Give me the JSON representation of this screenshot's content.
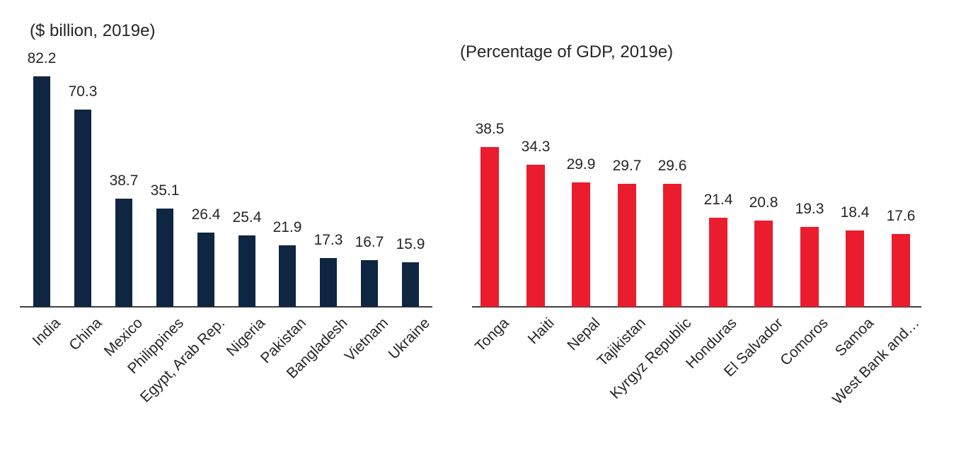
{
  "figure": {
    "description": "Two side-by-side bar charts of remittance inflows for 2019e"
  },
  "colors": {
    "left_bar": "#0e2642",
    "right_bar": "#eb1c2d",
    "axis": "#404040",
    "text": "#262626",
    "background": "#ffffff"
  },
  "chart_data": [
    {
      "type": "bar",
      "title": "($ billion, 2019e)",
      "categories": [
        "India",
        "China",
        "Mexico",
        "Philippines",
        "Egypt, Arab Rep.",
        "Nigeria",
        "Pakistan",
        "Bangladesh",
        "Vietnam",
        "Ukraine"
      ],
      "values": [
        82.2,
        70.3,
        38.7,
        35.1,
        26.4,
        25.4,
        21.9,
        17.3,
        16.7,
        15.9
      ],
      "bar_color": "#0e2642",
      "xlabel": "",
      "ylabel": "",
      "ylim": [
        0,
        90
      ],
      "grid": false,
      "legend_position": "none",
      "data_labels": true,
      "category_label_rotation_deg": -45
    },
    {
      "type": "bar",
      "title": "(Percentage of GDP, 2019e)",
      "categories": [
        "Tonga",
        "Haiti",
        "Nepal",
        "Tajikistan",
        "Kyrgyz Republic",
        "Honduras",
        "El Salvador",
        "Comoros",
        "Samoa",
        "West Bank and…"
      ],
      "values": [
        38.5,
        34.3,
        29.9,
        29.7,
        29.6,
        21.4,
        20.8,
        19.3,
        18.4,
        17.6
      ],
      "bar_color": "#eb1c2d",
      "xlabel": "",
      "ylabel": "",
      "ylim": [
        0,
        45
      ],
      "grid": false,
      "legend_position": "none",
      "data_labels": true,
      "category_label_rotation_deg": -45
    }
  ]
}
